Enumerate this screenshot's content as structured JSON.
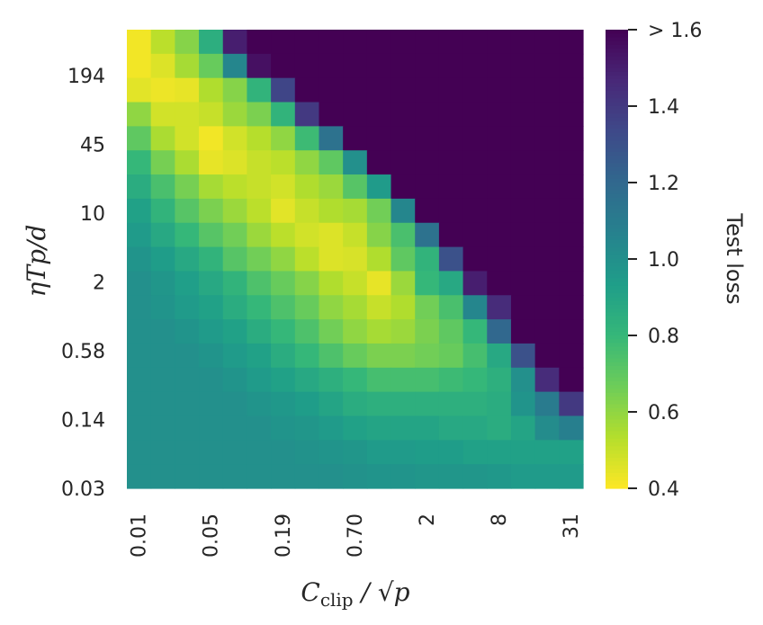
{
  "chart_data": {
    "type": "heatmap",
    "title": "",
    "xlabel": "C_clip / √p",
    "ylabel": "ηTp/d",
    "x_ticks": [
      "0.01",
      "0.05",
      "0.19",
      "0.70",
      "2",
      "8",
      "31"
    ],
    "y_ticks": [
      "194",
      "45",
      "10",
      "2",
      "0.58",
      "0.14",
      "0.03"
    ],
    "colorbar": {
      "label": "Test loss",
      "ticks": [
        "0.4",
        "0.6",
        "0.8",
        "1.0",
        "1.2",
        "1.4",
        "> 1.6"
      ],
      "range": [
        0.4,
        1.6
      ],
      "colormap": "viridis_r"
    },
    "grid": false,
    "n_cols": 19,
    "n_rows": 19,
    "values": [
      [
        0.42,
        0.52,
        0.62,
        0.85,
        1.5,
        1.6,
        1.6,
        1.6,
        1.6,
        1.6,
        1.6,
        1.6,
        1.6,
        1.6,
        1.6,
        1.6,
        1.6,
        1.6,
        1.6
      ],
      [
        0.42,
        0.46,
        0.56,
        0.68,
        1.05,
        1.55,
        1.6,
        1.6,
        1.6,
        1.6,
        1.6,
        1.6,
        1.6,
        1.6,
        1.6,
        1.6,
        1.6,
        1.6,
        1.6
      ],
      [
        0.45,
        0.43,
        0.44,
        0.54,
        0.62,
        0.82,
        1.35,
        1.6,
        1.6,
        1.6,
        1.6,
        1.6,
        1.6,
        1.6,
        1.6,
        1.6,
        1.6,
        1.6,
        1.6
      ],
      [
        0.6,
        0.48,
        0.48,
        0.5,
        0.58,
        0.64,
        0.82,
        1.4,
        1.6,
        1.6,
        1.6,
        1.6,
        1.6,
        1.6,
        1.6,
        1.6,
        1.6,
        1.6,
        1.6
      ],
      [
        0.7,
        0.55,
        0.48,
        0.42,
        0.48,
        0.53,
        0.6,
        0.78,
        1.15,
        1.6,
        1.6,
        1.6,
        1.6,
        1.6,
        1.6,
        1.6,
        1.6,
        1.6,
        1.6
      ],
      [
        0.8,
        0.65,
        0.55,
        0.44,
        0.46,
        0.5,
        0.52,
        0.6,
        0.7,
        1.0,
        1.6,
        1.6,
        1.6,
        1.6,
        1.6,
        1.6,
        1.6,
        1.6,
        1.6
      ],
      [
        0.86,
        0.75,
        0.65,
        0.56,
        0.52,
        0.5,
        0.48,
        0.54,
        0.58,
        0.72,
        0.95,
        1.6,
        1.6,
        1.6,
        1.6,
        1.6,
        1.6,
        1.6,
        1.6
      ],
      [
        0.92,
        0.82,
        0.72,
        0.64,
        0.58,
        0.52,
        0.45,
        0.5,
        0.54,
        0.56,
        0.66,
        1.05,
        1.6,
        1.6,
        1.6,
        1.6,
        1.6,
        1.6,
        1.6
      ],
      [
        0.95,
        0.88,
        0.8,
        0.72,
        0.66,
        0.58,
        0.52,
        0.48,
        0.46,
        0.5,
        0.62,
        0.75,
        1.15,
        1.6,
        1.6,
        1.6,
        1.6,
        1.6,
        1.6
      ],
      [
        0.98,
        0.94,
        0.88,
        0.82,
        0.72,
        0.66,
        0.6,
        0.52,
        0.46,
        0.47,
        0.54,
        0.7,
        0.82,
        1.3,
        1.6,
        1.6,
        1.6,
        1.6,
        1.6
      ],
      [
        1.0,
        0.97,
        0.93,
        0.88,
        0.82,
        0.74,
        0.68,
        0.62,
        0.54,
        0.5,
        0.44,
        0.58,
        0.8,
        0.88,
        1.5,
        1.6,
        1.6,
        1.6,
        1.6
      ],
      [
        1.0,
        0.98,
        0.95,
        0.92,
        0.86,
        0.8,
        0.74,
        0.68,
        0.6,
        0.56,
        0.5,
        0.54,
        0.66,
        0.75,
        1.05,
        1.45,
        1.6,
        1.6,
        1.6
      ],
      [
        1.0,
        1.0,
        0.98,
        0.95,
        0.92,
        0.86,
        0.8,
        0.74,
        0.66,
        0.6,
        0.56,
        0.58,
        0.64,
        0.7,
        0.8,
        1.2,
        1.6,
        1.6,
        1.6
      ],
      [
        1.0,
        1.0,
        1.0,
        0.98,
        0.95,
        0.92,
        0.86,
        0.8,
        0.74,
        0.68,
        0.64,
        0.64,
        0.66,
        0.68,
        0.76,
        0.88,
        1.3,
        1.6,
        1.6
      ],
      [
        1.0,
        1.0,
        1.0,
        1.0,
        0.98,
        0.95,
        0.92,
        0.88,
        0.84,
        0.8,
        0.76,
        0.76,
        0.76,
        0.78,
        0.8,
        0.84,
        1.0,
        1.45,
        1.6
      ],
      [
        1.0,
        1.0,
        1.0,
        1.0,
        1.0,
        0.98,
        0.96,
        0.94,
        0.9,
        0.86,
        0.84,
        0.84,
        0.84,
        0.84,
        0.84,
        0.86,
        0.98,
        1.1,
        1.4
      ],
      [
        1.0,
        1.0,
        1.0,
        1.0,
        1.0,
        1.0,
        0.98,
        0.97,
        0.95,
        0.92,
        0.9,
        0.9,
        0.9,
        0.88,
        0.88,
        0.86,
        0.9,
        1.02,
        1.08
      ],
      [
        1.0,
        1.0,
        1.0,
        1.0,
        1.0,
        1.0,
        1.0,
        0.99,
        0.98,
        0.97,
        0.95,
        0.95,
        0.94,
        0.94,
        0.92,
        0.92,
        0.92,
        0.92,
        0.92
      ],
      [
        1.0,
        1.0,
        1.0,
        1.0,
        1.0,
        1.0,
        1.0,
        1.0,
        1.0,
        0.99,
        0.98,
        0.98,
        0.97,
        0.97,
        0.97,
        0.96,
        0.95,
        0.95,
        0.95
      ]
    ]
  }
}
